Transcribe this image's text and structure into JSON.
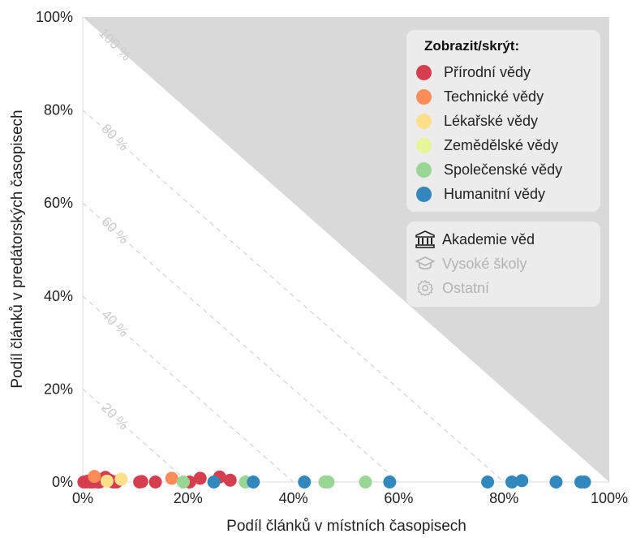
{
  "chart_data": {
    "type": "scatter",
    "xlabel": "Podíl článků v místních časopisech",
    "ylabel": "Podíl článků v predátorských časopisech",
    "xlim": [
      0,
      100
    ],
    "ylim": [
      0,
      100
    ],
    "x_ticks": [
      "0%",
      "20%",
      "40%",
      "60%",
      "80%",
      "100%"
    ],
    "y_ticks": [
      "0%",
      "20%",
      "40%",
      "60%",
      "80%",
      "100%"
    ],
    "diagonal_labels": [
      "20 %",
      "40 %",
      "60 %",
      "80 %",
      "100 %"
    ],
    "grid": false,
    "legend_position": "top-right",
    "legend_title": "Zobrazit/skrýt:",
    "series": [
      {
        "name": "Přírodní vědy",
        "color": "#d53e4f",
        "points": [
          [
            0.2,
            0
          ],
          [
            0.6,
            0
          ],
          [
            1.0,
            0.2
          ],
          [
            1.4,
            0
          ],
          [
            1.9,
            0
          ],
          [
            2.3,
            0.3
          ],
          [
            2.8,
            0
          ],
          [
            3.2,
            0
          ],
          [
            3.7,
            0.6
          ],
          [
            4.3,
            1.0
          ],
          [
            5.1,
            0.4
          ],
          [
            5.8,
            0
          ],
          [
            6.4,
            0
          ],
          [
            10.8,
            0
          ],
          [
            11.2,
            0.1
          ],
          [
            13.8,
            0
          ],
          [
            20.3,
            0
          ],
          [
            22.3,
            0.8
          ],
          [
            26.0,
            1.1
          ],
          [
            28.0,
            0.4
          ]
        ]
      },
      {
        "name": "Technické vědy",
        "color": "#fc8d59",
        "points": [
          [
            2.2,
            1.2
          ],
          [
            16.9,
            0.8
          ]
        ]
      },
      {
        "name": "Lékařské vědy",
        "color": "#fee08b",
        "points": [
          [
            4.6,
            0.2
          ],
          [
            7.3,
            0.6
          ]
        ]
      },
      {
        "name": "Zemědělské vědy",
        "color": "#e6f598",
        "points": []
      },
      {
        "name": "Společenské vědy",
        "color": "#99d594",
        "points": [
          [
            19.1,
            0
          ],
          [
            30.9,
            0
          ],
          [
            46.0,
            0
          ],
          [
            46.6,
            0
          ],
          [
            53.7,
            0
          ]
        ]
      },
      {
        "name": "Humanitní vědy",
        "color": "#3288bd",
        "points": [
          [
            24.9,
            0
          ],
          [
            32.4,
            0
          ],
          [
            42.1,
            0
          ],
          [
            58.3,
            0
          ],
          [
            76.9,
            0
          ],
          [
            81.5,
            0
          ],
          [
            83.4,
            0.3
          ],
          [
            89.9,
            0
          ],
          [
            94.6,
            0
          ],
          [
            95.3,
            0
          ]
        ]
      }
    ]
  },
  "legend_institutions": [
    {
      "label": "Akademie věd",
      "icon": "building-columns-icon",
      "active": true
    },
    {
      "label": "Vysoké školy",
      "icon": "graduation-cap-icon",
      "active": false
    },
    {
      "label": "Ostatní",
      "icon": "gear-icon",
      "active": false
    }
  ],
  "colors": {
    "excluded_region": "#d9d9d9",
    "diagonal": "#cccccc",
    "axis": "#dddddd",
    "legend_bg": "#ececec"
  }
}
